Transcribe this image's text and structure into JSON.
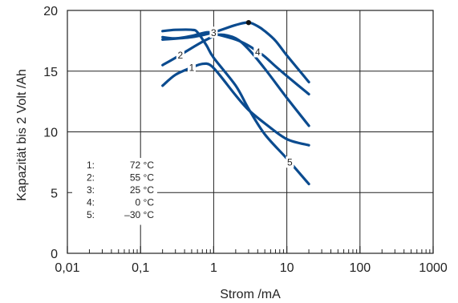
{
  "chart_data": {
    "type": "line",
    "title": "",
    "xlabel": "Strom /mA",
    "ylabel": "Kapazität bis 2 Volt /Ah",
    "x_scale": "log",
    "xlim": [
      0.01,
      1000
    ],
    "ylim": [
      0,
      20
    ],
    "x_ticks": [
      "0,01",
      "0,1",
      "1",
      "10",
      "100",
      "1000"
    ],
    "y_ticks": [
      "0",
      "5",
      "10",
      "15",
      "20"
    ],
    "grid": true,
    "legend_position": "bottom-left",
    "legend": [
      {
        "id": "1",
        "key": "1:",
        "label": "72 °C"
      },
      {
        "id": "2",
        "key": "2:",
        "label": "55 °C"
      },
      {
        "id": "3",
        "key": "3:",
        "label": "25 °C"
      },
      {
        "id": "4",
        "key": "4:",
        "label": "0 °C"
      },
      {
        "id": "5",
        "key": "5:",
        "label": "–30 °C"
      }
    ],
    "series": [
      {
        "id": "1",
        "curve_label": "1",
        "x": [
          0.2,
          0.3,
          0.5,
          0.7,
          0.9,
          1.2,
          2,
          3,
          5,
          10,
          20
        ],
        "y": [
          13.8,
          14.7,
          15.3,
          15.6,
          15.5,
          14.7,
          13.0,
          11.8,
          10.7,
          9.4,
          8.9
        ]
      },
      {
        "id": "2",
        "curve_label": "2",
        "x": [
          0.2,
          0.3,
          0.5,
          0.8,
          1.2,
          2,
          3,
          5,
          10,
          20
        ],
        "y": [
          15.5,
          16.1,
          16.9,
          17.6,
          18.0,
          17.7,
          16.8,
          15.2,
          12.8,
          10.5
        ]
      },
      {
        "id": "3",
        "curve_label": "3",
        "x": [
          0.2,
          0.5,
          1,
          2,
          3,
          4,
          5,
          7,
          10,
          20
        ],
        "y": [
          17.6,
          17.8,
          18.2,
          18.8,
          19.0,
          18.7,
          18.3,
          17.5,
          16.3,
          14.1
        ]
      },
      {
        "id": "4",
        "curve_label": "4",
        "x": [
          0.2,
          0.3,
          0.5,
          0.8,
          1,
          2,
          3,
          4,
          5,
          7,
          10,
          20
        ],
        "y": [
          17.8,
          17.7,
          17.9,
          18.2,
          18.1,
          17.6,
          17.1,
          16.6,
          16.2,
          15.4,
          14.6,
          13.1
        ]
      },
      {
        "id": "5",
        "curve_label": "5",
        "x": [
          0.2,
          0.3,
          0.5,
          0.6,
          0.8,
          1,
          2,
          3,
          5,
          10,
          20
        ],
        "y": [
          18.3,
          18.4,
          18.4,
          18.2,
          17.1,
          16.1,
          13.8,
          11.9,
          9.8,
          7.8,
          5.7
        ]
      }
    ],
    "marker": {
      "series": "3",
      "x": 3,
      "y": 19.0
    },
    "line_color": "#0b4b8f"
  }
}
